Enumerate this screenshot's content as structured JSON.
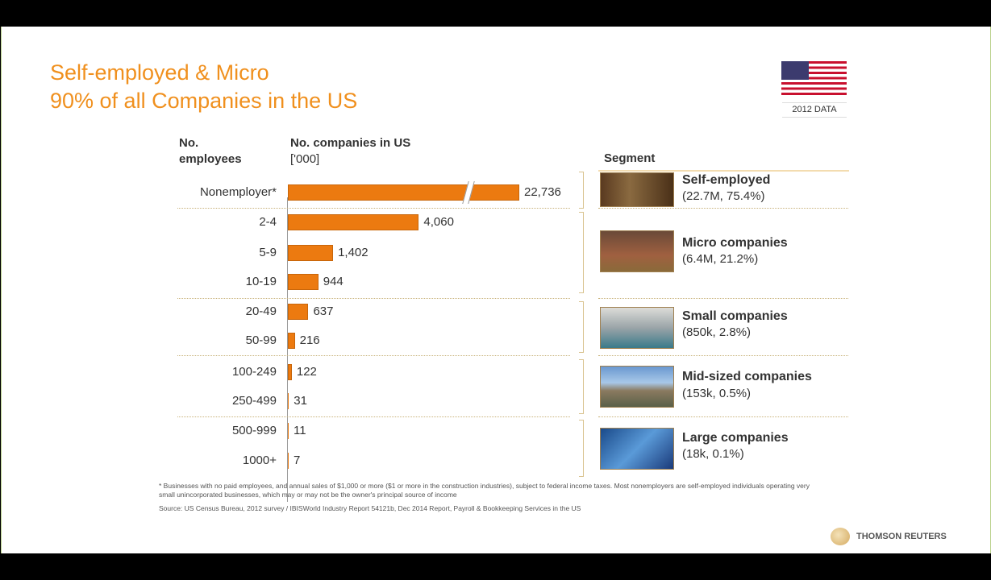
{
  "title": [
    "Self-employed & Micro",
    "90% of all Companies in the US"
  ],
  "badge": "2012 DATA",
  "headers": {
    "employees": [
      "No.",
      "employees"
    ],
    "companies": "No. companies in US",
    "units": "['000]",
    "segment": "Segment"
  },
  "chart_data": {
    "type": "bar",
    "orientation": "horizontal",
    "title": "No. companies in US ['000]",
    "categories": [
      "Nonemployer*",
      "2-4",
      "5-9",
      "10-19",
      "20-49",
      "50-99",
      "100-249",
      "250-499",
      "500-999",
      "1000+"
    ],
    "values": [
      22736,
      4060,
      1402,
      944,
      637,
      216,
      122,
      31,
      11,
      7
    ],
    "labels": [
      "22,736",
      "4,060",
      "1,402",
      "944",
      "637",
      "216",
      "122",
      "31",
      "11",
      "7"
    ],
    "axis_break_on": "Nonemployer*"
  },
  "segments": [
    {
      "name": "Self-employed",
      "detail": "(22.7M, 75.4%)"
    },
    {
      "name": "Micro companies",
      "detail": "(6.4M, 21.2%)"
    },
    {
      "name": "Small companies",
      "detail": "(850k, 2.8%)"
    },
    {
      "name": "Mid-sized companies",
      "detail": "(153k, 0.5%)"
    },
    {
      "name": "Large companies",
      "detail": "(18k, 0.1%)"
    }
  ],
  "footnote": "* Businesses with no paid employees, and annual sales of $1,000 or more ($1 or more in the construction industries), subject to federal income taxes. Most nonemployers are self-employed individuals operating very small unincorporated businesses, which may or may not be the owner's principal source of income",
  "source": "Source: US Census Bureau, 2012 survey / IBISWorld Industry Report 54121b, Dec 2014 Report, Payroll & Bookkeeping Services in the US",
  "logo": "THOMSON REUTERS",
  "colors": {
    "accent": "#f0901e",
    "bar": "#ec7a10"
  }
}
